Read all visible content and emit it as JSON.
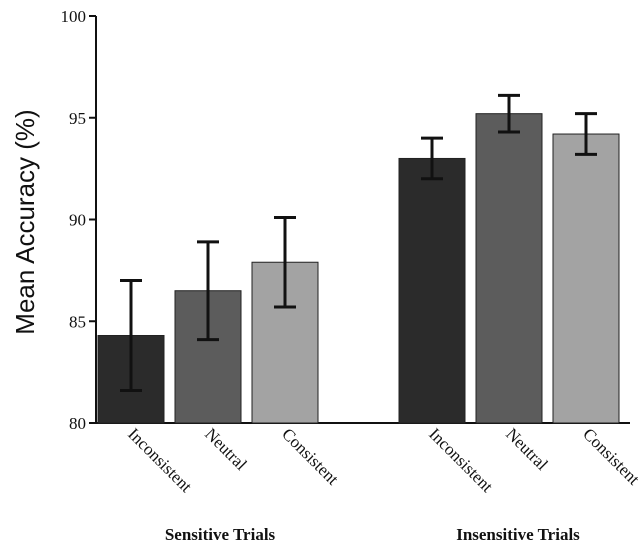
{
  "chart_data": {
    "type": "bar",
    "title": "",
    "xlabel": "",
    "ylabel": "Mean Accuracy (%)",
    "ylim": [
      80,
      100
    ],
    "yticks": [
      80,
      85,
      90,
      95,
      100
    ],
    "grid": false,
    "legend": "none",
    "groups": [
      {
        "label": "Sensitive Trials",
        "bars": [
          {
            "category": "Inconsistent",
            "value": 84.3,
            "err_low": 81.6,
            "err_high": 87.0,
            "color": "#2b2b2b"
          },
          {
            "category": "Neutral",
            "value": 86.5,
            "err_low": 84.1,
            "err_high": 88.9,
            "color": "#5c5c5c"
          },
          {
            "category": "Consistent",
            "value": 87.9,
            "err_low": 85.7,
            "err_high": 90.1,
            "color": "#a3a3a3"
          }
        ]
      },
      {
        "label": "Insensitive Trials",
        "bars": [
          {
            "category": "Inconsistent",
            "value": 93.0,
            "err_low": 92.0,
            "err_high": 94.0,
            "color": "#2b2b2b"
          },
          {
            "category": "Neutral",
            "value": 95.2,
            "err_low": 94.3,
            "err_high": 96.1,
            "color": "#5c5c5c"
          },
          {
            "category": "Consistent",
            "value": 94.2,
            "err_low": 93.2,
            "err_high": 95.2,
            "color": "#a3a3a3"
          }
        ]
      }
    ]
  }
}
